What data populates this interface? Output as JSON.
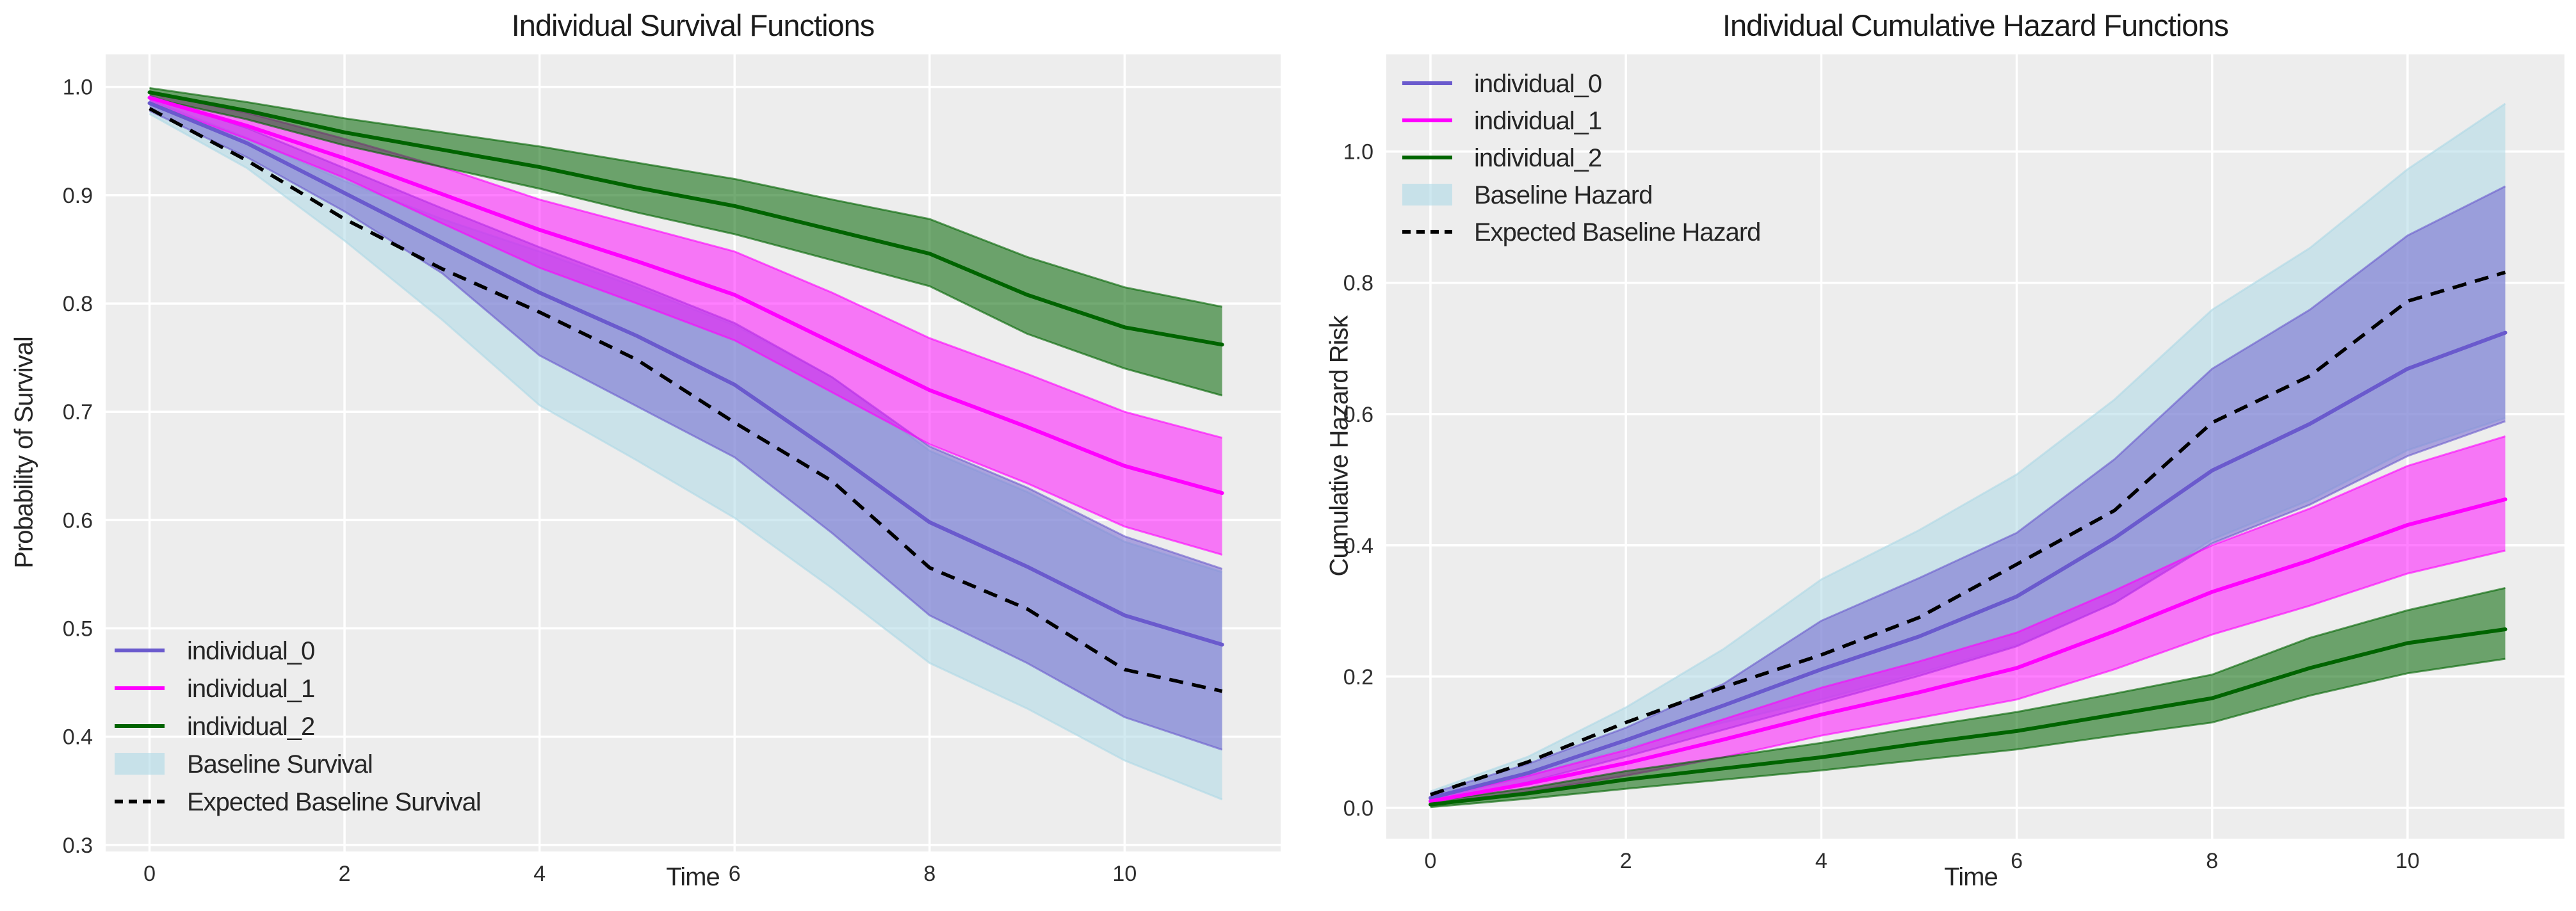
{
  "figure": {
    "background_color": "#ffffff",
    "axes_background_color": "#EDEDED",
    "grid_color": "#ffffff",
    "text_color": "#262626"
  },
  "chart_data": [
    {
      "type": "line",
      "title": "Individual Survival Functions",
      "xlabel": "Time",
      "ylabel": "Probability of Survival",
      "x_ticks": [
        0,
        2,
        4,
        6,
        8,
        10
      ],
      "y_ticks": [
        1.0,
        0.9,
        0.8,
        0.7,
        0.6,
        0.5,
        0.4,
        0.3
      ],
      "xlim": [
        -0.45,
        11.6
      ],
      "ylim": [
        0.294,
        1.03
      ],
      "grid": true,
      "legend_position": "lower left",
      "x": [
        0,
        1,
        2,
        3,
        4,
        5,
        6,
        7,
        8,
        9,
        10,
        11
      ],
      "series": [
        {
          "name": "individual_0",
          "type": "line_with_band",
          "color": "#6A5ACD",
          "fill_alpha": 0.5,
          "values": [
            0.985,
            0.948,
            0.902,
            0.856,
            0.81,
            0.77,
            0.725,
            0.663,
            0.598,
            0.557,
            0.512,
            0.485
          ],
          "ci_lower": [
            0.978,
            0.935,
            0.885,
            0.828,
            0.752,
            0.705,
            0.658,
            0.588,
            0.512,
            0.468,
            0.418,
            0.388
          ],
          "ci_upper": [
            0.992,
            0.962,
            0.925,
            0.888,
            0.852,
            0.818,
            0.782,
            0.732,
            0.668,
            0.63,
            0.585,
            0.555
          ]
        },
        {
          "name": "individual_1",
          "type": "line_with_band",
          "color": "#FF00FF",
          "fill_alpha": 0.5,
          "values": [
            0.99,
            0.964,
            0.934,
            0.901,
            0.868,
            0.839,
            0.808,
            0.764,
            0.72,
            0.686,
            0.65,
            0.625
          ],
          "ci_lower": [
            0.985,
            0.952,
            0.916,
            0.874,
            0.833,
            0.8,
            0.766,
            0.718,
            0.67,
            0.634,
            0.594,
            0.568
          ],
          "ci_upper": [
            0.995,
            0.976,
            0.952,
            0.926,
            0.896,
            0.872,
            0.848,
            0.81,
            0.768,
            0.735,
            0.7,
            0.676
          ]
        },
        {
          "name": "individual_2",
          "type": "line_with_band",
          "color": "#006400",
          "fill_alpha": 0.55,
          "values": [
            0.995,
            0.978,
            0.958,
            0.942,
            0.926,
            0.907,
            0.89,
            0.868,
            0.846,
            0.808,
            0.778,
            0.762
          ],
          "ci_lower": [
            0.99,
            0.97,
            0.946,
            0.926,
            0.906,
            0.884,
            0.864,
            0.84,
            0.816,
            0.772,
            0.74,
            0.715
          ],
          "ci_upper": [
            0.999,
            0.986,
            0.971,
            0.958,
            0.945,
            0.93,
            0.915,
            0.896,
            0.878,
            0.843,
            0.815,
            0.797
          ]
        },
        {
          "name": "Baseline Survival",
          "type": "band",
          "color": "#ADD8E6",
          "fill_alpha": 0.55,
          "ci_lower": [
            0.975,
            0.925,
            0.858,
            0.785,
            0.706,
            0.655,
            0.602,
            0.537,
            0.468,
            0.426,
            0.378,
            0.342
          ],
          "ci_upper": [
            0.988,
            0.953,
            0.913,
            0.878,
            0.848,
            0.815,
            0.78,
            0.732,
            0.664,
            0.626,
            0.58,
            0.552
          ]
        },
        {
          "name": "Expected Baseline Survival",
          "type": "dashed_line",
          "color": "#000000",
          "values": [
            0.98,
            0.932,
            0.878,
            0.832,
            0.792,
            0.748,
            0.69,
            0.636,
            0.556,
            0.518,
            0.462,
            0.442
          ]
        }
      ]
    },
    {
      "type": "line",
      "title": "Individual Cumulative Hazard Functions",
      "xlabel": "Time",
      "ylabel": "Cumulative Hazard Risk",
      "x_ticks": [
        0,
        2,
        4,
        6,
        8,
        10
      ],
      "y_ticks": [
        0.0,
        0.2,
        0.4,
        0.6,
        0.8,
        1.0
      ],
      "xlim": [
        -0.452,
        11.606
      ],
      "ylim": [
        -0.047,
        1.148
      ],
      "grid": true,
      "legend_position": "upper left",
      "x": [
        0,
        1,
        2,
        3,
        4,
        5,
        6,
        7,
        8,
        9,
        10,
        11
      ],
      "series": [
        {
          "name": "individual_0",
          "type": "line_with_band",
          "color": "#6A5ACD",
          "fill_alpha": 0.5,
          "values": [
            0.015,
            0.053,
            0.103,
            0.156,
            0.211,
            0.261,
            0.322,
            0.411,
            0.514,
            0.585,
            0.669,
            0.724
          ],
          "ci_lower": [
            0.008,
            0.039,
            0.078,
            0.119,
            0.16,
            0.201,
            0.246,
            0.312,
            0.403,
            0.462,
            0.536,
            0.589
          ],
          "ci_upper": [
            0.022,
            0.067,
            0.122,
            0.189,
            0.285,
            0.35,
            0.419,
            0.531,
            0.669,
            0.759,
            0.872,
            0.947
          ]
        },
        {
          "name": "individual_1",
          "type": "line_with_band",
          "color": "#FF00FF",
          "fill_alpha": 0.5,
          "values": [
            0.01,
            0.037,
            0.068,
            0.104,
            0.142,
            0.176,
            0.213,
            0.269,
            0.329,
            0.377,
            0.431,
            0.47
          ],
          "ci_lower": [
            0.005,
            0.024,
            0.049,
            0.077,
            0.11,
            0.137,
            0.165,
            0.211,
            0.264,
            0.308,
            0.357,
            0.392
          ],
          "ci_upper": [
            0.015,
            0.049,
            0.088,
            0.135,
            0.183,
            0.223,
            0.267,
            0.331,
            0.4,
            0.456,
            0.521,
            0.566
          ]
        },
        {
          "name": "individual_2",
          "type": "line_with_band",
          "color": "#006400",
          "fill_alpha": 0.55,
          "values": [
            0.005,
            0.022,
            0.043,
            0.06,
            0.077,
            0.098,
            0.117,
            0.142,
            0.167,
            0.213,
            0.251,
            0.272
          ],
          "ci_lower": [
            0.001,
            0.014,
            0.029,
            0.043,
            0.057,
            0.073,
            0.089,
            0.11,
            0.13,
            0.171,
            0.205,
            0.227
          ],
          "ci_upper": [
            0.01,
            0.03,
            0.056,
            0.077,
            0.099,
            0.123,
            0.146,
            0.174,
            0.203,
            0.259,
            0.301,
            0.335
          ]
        },
        {
          "name": "Baseline Hazard",
          "type": "band",
          "color": "#ADD8E6",
          "fill_alpha": 0.55,
          "ci_lower": [
            0.012,
            0.048,
            0.091,
            0.13,
            0.165,
            0.205,
            0.248,
            0.312,
            0.409,
            0.469,
            0.545,
            0.594
          ],
          "ci_upper": [
            0.025,
            0.078,
            0.153,
            0.242,
            0.348,
            0.423,
            0.508,
            0.622,
            0.759,
            0.853,
            0.973,
            1.073
          ]
        },
        {
          "name": "Expected Baseline Hazard",
          "type": "dashed_line",
          "color": "#000000",
          "values": [
            0.02,
            0.07,
            0.13,
            0.184,
            0.233,
            0.29,
            0.371,
            0.453,
            0.587,
            0.658,
            0.772,
            0.816
          ]
        }
      ]
    }
  ]
}
